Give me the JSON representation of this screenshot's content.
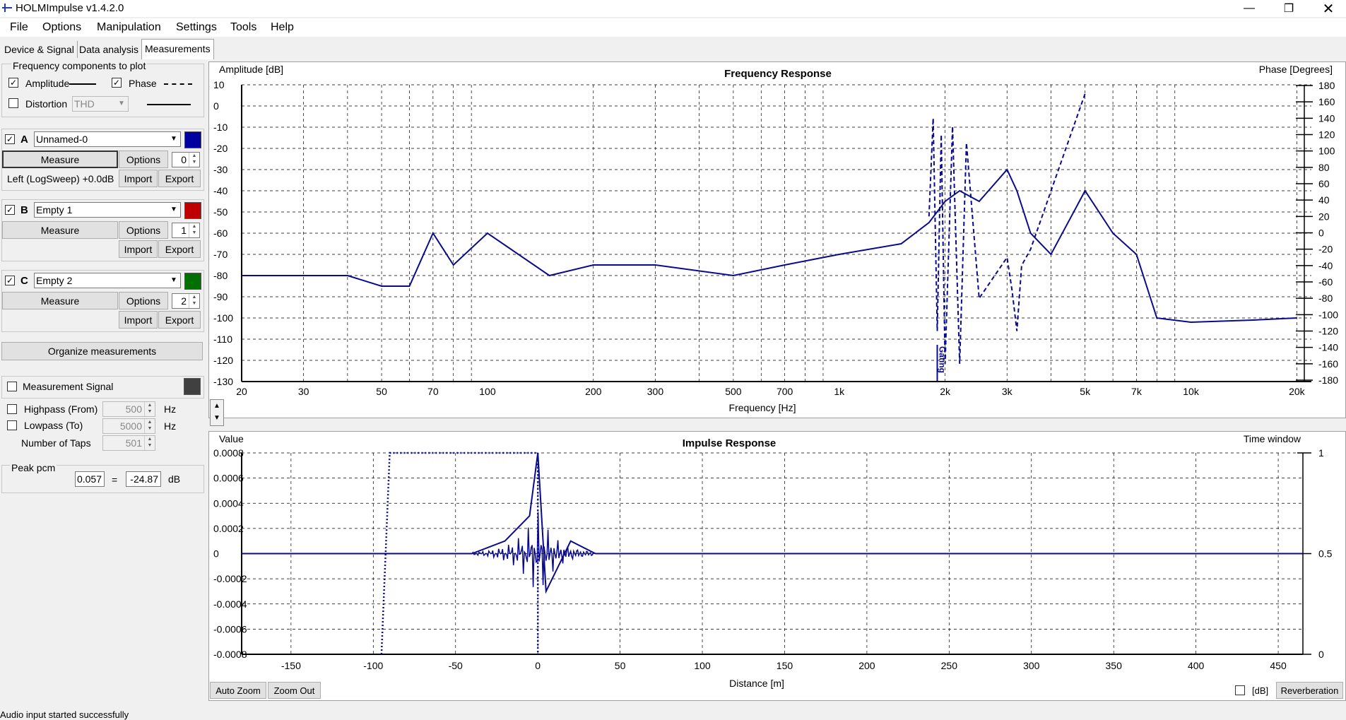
{
  "window": {
    "title": "HOLMImpulse  v1.4.2.0"
  },
  "menu": [
    "File",
    "Options",
    "Manipulation",
    "Settings",
    "Tools",
    "Help"
  ],
  "tabs": [
    {
      "label": "Device & Signal",
      "active": false
    },
    {
      "label": "Data analysis",
      "active": false
    },
    {
      "label": "Measurements",
      "active": true
    }
  ],
  "freq_components": {
    "title": "Frequency components to plot",
    "amplitude_label": "Amplitude",
    "amplitude_checked": true,
    "phase_label": "Phase",
    "phase_checked": true,
    "distortion_label": "Distortion",
    "distortion_checked": false,
    "distortion_value": "THD"
  },
  "channels": [
    {
      "letter": "A",
      "checked": true,
      "name": "Unnamed-0",
      "color": "#0000a0",
      "measure": "Measure",
      "options": "Options",
      "spin": "0",
      "info": "Left (LogSweep) +0.0dB",
      "import": "Import",
      "export": "Export"
    },
    {
      "letter": "B",
      "checked": true,
      "name": "Empty 1",
      "color": "#c00000",
      "measure": "Measure",
      "options": "Options",
      "spin": "1",
      "info": "",
      "import": "Import",
      "export": "Export"
    },
    {
      "letter": "C",
      "checked": true,
      "name": "Empty 2",
      "color": "#007000",
      "measure": "Measure",
      "options": "Options",
      "spin": "2",
      "info": "",
      "import": "Import",
      "export": "Export"
    }
  ],
  "organize_label": "Organize measurements",
  "measurement_signal": {
    "label": "Measurement Signal",
    "checked": false,
    "color": "#404040"
  },
  "filters": {
    "highpass_label": "Highpass (From)",
    "highpass_value": "500",
    "highpass_unit": "Hz",
    "lowpass_label": "Lowpass (To)",
    "lowpass_value": "5000",
    "lowpass_unit": "Hz",
    "taps_label": "Number of Taps",
    "taps_value": "501"
  },
  "peak": {
    "title": "Peak pcm",
    "value": "0.057",
    "eq": "=",
    "db": "-24.87",
    "unit": "dB"
  },
  "freq_chart": {
    "title": "Frequency Response",
    "ylabel": "Amplitude [dB]",
    "y2label": "Phase [Degrees]",
    "xlabel": "Frequency [Hz]",
    "yticks": [
      "10",
      "0",
      "-10",
      "-20",
      "-30",
      "-40",
      "-50",
      "-60",
      "-70",
      "-80",
      "-90",
      "-100",
      "-110",
      "-120",
      "-130"
    ],
    "y2ticks": [
      "180",
      "160",
      "140",
      "120",
      "100",
      "80",
      "60",
      "40",
      "20",
      "0",
      "-20",
      "-40",
      "-60",
      "-80",
      "-100",
      "-120",
      "-140",
      "-160",
      "-180"
    ],
    "xticks": [
      "20",
      "30",
      "50",
      "70",
      "100",
      "200",
      "300",
      "500",
      "700",
      "1k",
      "2k",
      "3k",
      "5k",
      "7k",
      "10k",
      "20k"
    ],
    "gating_label": "Gating"
  },
  "impulse_chart": {
    "title": "Impulse Response",
    "ylabel": "Value",
    "y2label": "Time window",
    "xlabel": "Distance [m]",
    "yticks": [
      "0.0008",
      "0.0006",
      "0.0004",
      "0.0002",
      "0",
      "-0.0002",
      "-0.0004",
      "-0.0006",
      "-0.0008"
    ],
    "y2ticks": [
      "1",
      "0.5",
      "0"
    ],
    "xticks": [
      "-150",
      "-100",
      "-50",
      "0",
      "50",
      "100",
      "150",
      "200",
      "250",
      "300",
      "350",
      "400",
      "450"
    ]
  },
  "chart_data": [
    {
      "type": "line",
      "title": "Frequency Response",
      "xlabel": "Frequency [Hz]",
      "ylabel": "Amplitude [dB]",
      "xscale": "log",
      "xlim": [
        20,
        22000
      ],
      "ylim": [
        -130,
        10
      ],
      "y2lim": [
        -180,
        180
      ],
      "grid": true,
      "series": [
        {
          "style": "solid",
          "x": [
            20,
            30,
            40,
            50,
            60,
            70,
            80,
            100,
            150,
            200,
            300,
            500,
            700,
            1000,
            1500,
            1800,
            2000,
            2200,
            2500,
            3000,
            3200,
            3500,
            4000,
            5000,
            6000,
            7000,
            8000,
            10000,
            15000,
            20000
          ],
          "y": [
            -80,
            -80,
            -80,
            -85,
            -85,
            -60,
            -75,
            -60,
            -80,
            -75,
            -75,
            -80,
            -75,
            -70,
            -65,
            -55,
            -45,
            -40,
            -45,
            -30,
            -40,
            -60,
            -70,
            -40,
            -60,
            -70,
            -100,
            -102,
            -101,
            -100
          ]
        },
        {
          "style": "dashed",
          "x": [
            1800,
            1850,
            1900,
            1950,
            2000,
            2100,
            2200,
            2300,
            2500,
            3000,
            3100,
            3200,
            3300,
            3500,
            5000
          ],
          "y": [
            20,
            140,
            -120,
            120,
            -160,
            130,
            -160,
            110,
            -80,
            -30,
            -70,
            -120,
            -40,
            -20,
            170
          ]
        }
      ]
    },
    {
      "type": "line",
      "title": "Impulse Response",
      "xlabel": "Distance [m]",
      "ylabel": "Value",
      "xlim": [
        -180,
        465
      ],
      "ylim": [
        -0.0008,
        0.0008
      ],
      "y2lim": [
        0,
        1
      ],
      "grid": true,
      "series": [
        {
          "style": "solid",
          "x": [
            -180,
            -40,
            -20,
            -5,
            0,
            5,
            20,
            35,
            465
          ],
          "y": [
            0,
            0,
            0.0001,
            0.0003,
            0.0008,
            -0.0003,
            0.0001,
            0,
            0
          ]
        },
        {
          "style": "dotted",
          "x": [
            -95,
            -90,
            0,
            0
          ],
          "y": [
            0,
            1,
            1,
            0
          ]
        }
      ]
    }
  ],
  "bottom": {
    "autozoom": "Auto Zoom",
    "zoomout": "Zoom Out",
    "db_label": "[dB]",
    "reverb": "Reverberation"
  },
  "status": "Audio input started successfully"
}
